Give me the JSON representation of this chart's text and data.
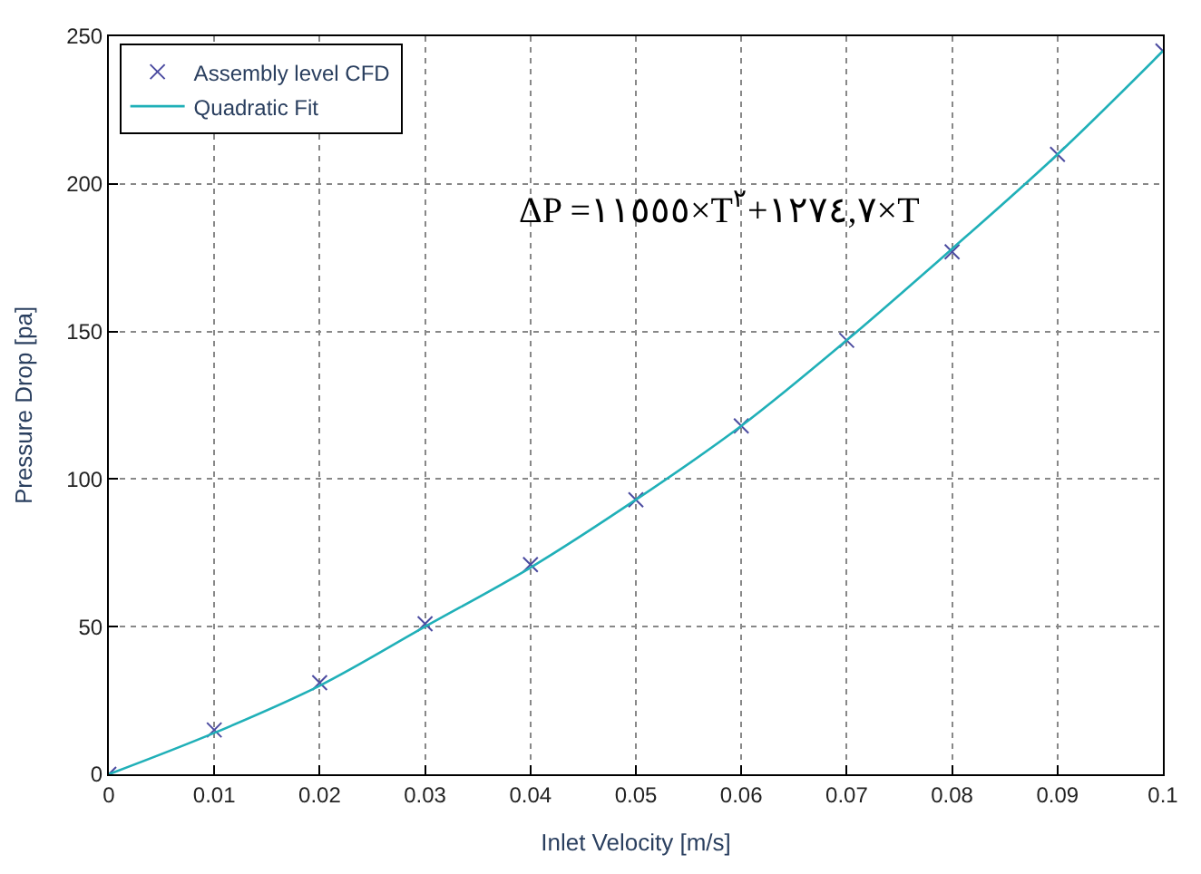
{
  "chart_data": {
    "type": "scatter",
    "xlabel": "Inlet Velocity [m/s]",
    "ylabel": "Pressure Drop [pa]",
    "x": [
      0,
      0.01,
      0.02,
      0.03,
      0.04,
      0.05,
      0.06,
      0.07,
      0.08,
      0.09,
      0.1
    ],
    "series": [
      {
        "name": "Assembly level CFD",
        "color": "#4b4ba0",
        "marker": "cross",
        "values": [
          0,
          15,
          31,
          51,
          71,
          93,
          118,
          147,
          177,
          210,
          245
        ]
      },
      {
        "name": "Quadratic Fit",
        "color": "#20b0b8",
        "type": "line",
        "marker": "none",
        "line_style": "solid",
        "values": [
          0,
          14,
          30,
          50,
          70,
          93,
          118,
          147,
          178,
          210,
          245
        ]
      }
    ],
    "xlim": [
      0,
      0.1
    ],
    "xticks": [
      0,
      0.01,
      0.02,
      0.03,
      0.04,
      0.05,
      0.06,
      0.07,
      0.08,
      0.09,
      0.1
    ],
    "ylim": [
      0,
      250
    ],
    "yticks": [
      0,
      50,
      100,
      150,
      200,
      250
    ],
    "grid": true,
    "legend": "top left",
    "annotations": [
      "ΔP =١١٥٥٥×T$^{٢}$+١٢٧٤,٧×T"
    ]
  }
}
